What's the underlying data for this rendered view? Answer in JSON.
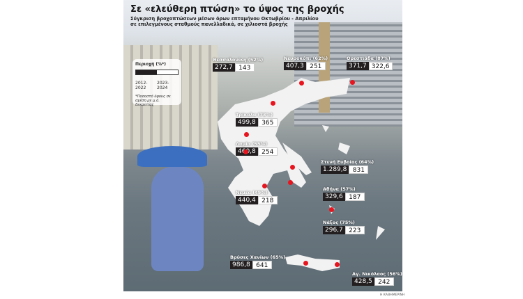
{
  "header": {
    "title": "Σε «ελεύθερη πτώση» το ύψος της βροχής",
    "subtitle_line1": "Σύγκριση βροχοπτώσεων μέσων όρων επταμήνου Οκτωβρίου - Απριλίου",
    "subtitle_line2": "σε επιλεγμένους σταθμούς πανελλαδικά, σε χιλιοστά βροχής"
  },
  "legend": {
    "title": "Περιοχή (%*)",
    "period1": "2012-2022",
    "period2": "2023-2024",
    "note": "*Ποσοστό ύψους σε σχέση με μ.ό. δεκαετίας",
    "color1": "#231f20",
    "color2": "#ffffff"
  },
  "stations": [
    {
      "name": "Θεσσαλονίκη (52%)",
      "v2012_2022": "272,7",
      "v2023_2024": "143"
    },
    {
      "name": "Νευροκόπι (62%)",
      "v2012_2022": "407,3",
      "v2023_2024": "251"
    },
    {
      "name": "Ορεστιάδα (87%)",
      "v2012_2022": "371,7",
      "v2023_2024": "322,6"
    },
    {
      "name": "Τρίκαλα (73%)",
      "v2012_2022": "499,8",
      "v2023_2024": "365"
    },
    {
      "name": "Λαμία (55%)",
      "v2012_2022": "460,8",
      "v2023_2024": "254"
    },
    {
      "name": "Στενή Ευβοίας (64%)",
      "v2012_2022": "1.289,8",
      "v2023_2024": "831"
    },
    {
      "name": "Αθήνα (57%)",
      "v2012_2022": "329,6",
      "v2023_2024": "187"
    },
    {
      "name": "Νεμέα (49%)",
      "v2012_2022": "440,4",
      "v2023_2024": "218"
    },
    {
      "name": "Νάξος (75%)",
      "v2012_2022": "296,7",
      "v2023_2024": "223"
    },
    {
      "name": "Βρύσες Χανίων (65%)",
      "v2012_2022": "986,8",
      "v2023_2024": "641"
    },
    {
      "name": "Αγ. Νικόλαος (56%)",
      "v2012_2022": "428,5",
      "v2023_2024": "242"
    }
  ],
  "colors": {
    "marker": "#e8141e",
    "map": "#f2f2f2"
  },
  "credit": "Η ΚΑΘΗΜΕΡΙΝΗ"
}
